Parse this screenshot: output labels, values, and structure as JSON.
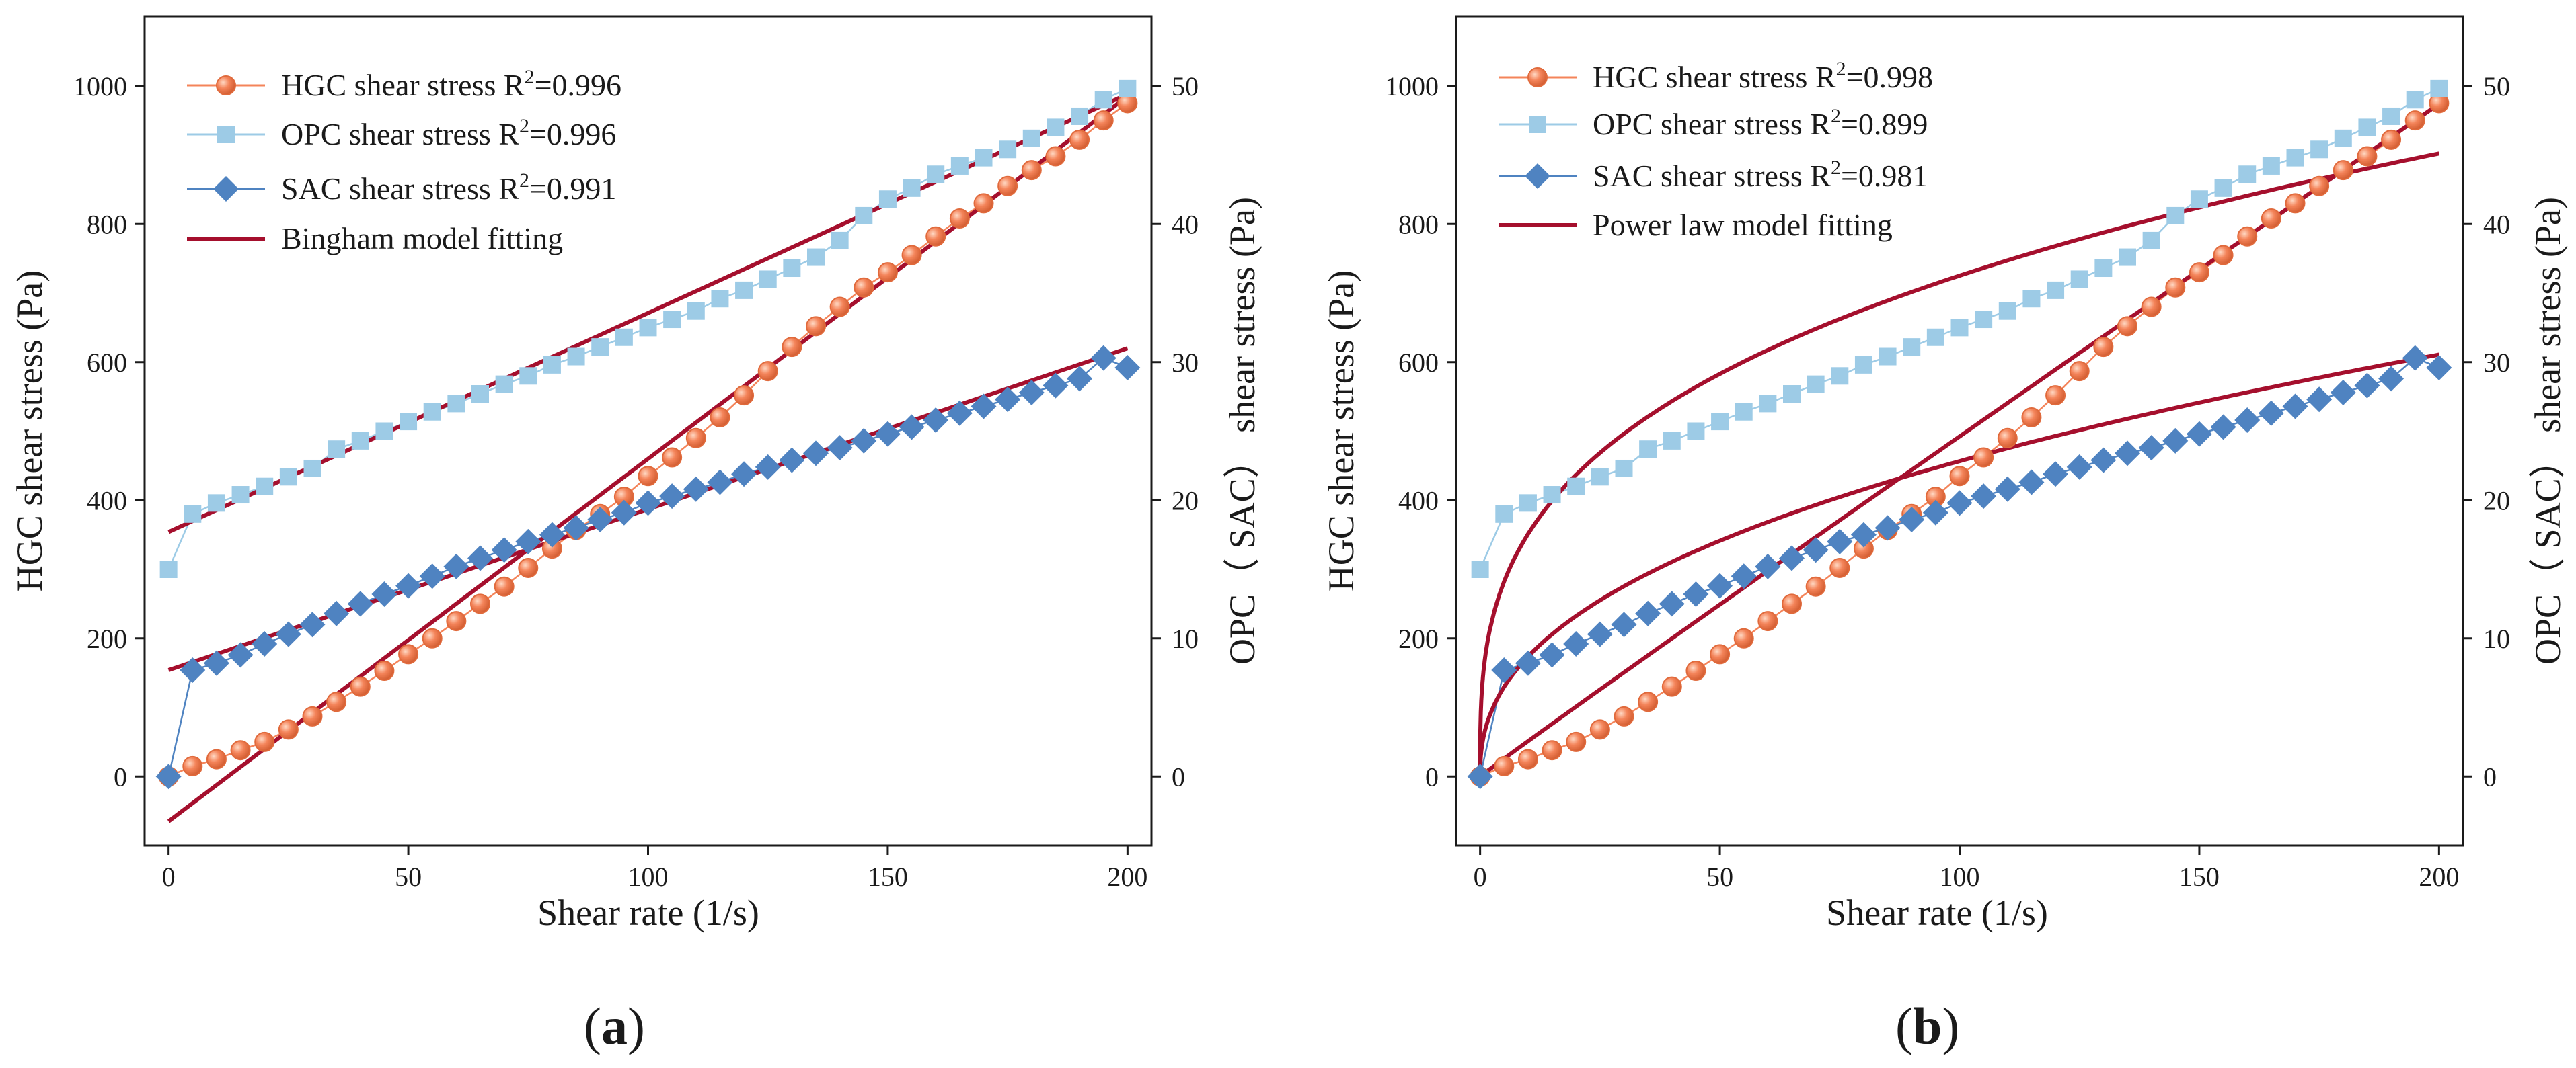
{
  "chart_data": [
    {
      "type": "scatter",
      "panel_label": "a",
      "xlabel": "Shear rate (1/s)",
      "ylabel_left": "HGC shear stress (Pa)",
      "ylabel_right": "OPC（ SAC） shear stress (Pa)",
      "xlim": [
        -5,
        205
      ],
      "ylim_left": [
        -100,
        1100
      ],
      "ylim_right": [
        -5,
        55
      ],
      "xticks": [
        0,
        50,
        100,
        150,
        200
      ],
      "yticks_left": [
        0,
        200,
        400,
        600,
        800,
        1000
      ],
      "yticks_right": [
        0,
        10,
        20,
        30,
        40,
        50
      ],
      "legend": [
        {
          "label": "HGC shear stress R",
          "sup": "2",
          "r2": "=0.996",
          "color": "#f4845a",
          "marker": "circle"
        },
        {
          "label": "OPC shear stress R",
          "sup": "2",
          "r2": "=0.996",
          "color": "#9dcbe6",
          "marker": "square"
        },
        {
          "label": "SAC shear stress R",
          "sup": "2",
          "r2": "=0.991",
          "color": "#4f83c1",
          "marker": "diamond"
        },
        {
          "label": "Bingham model fitting",
          "color": "#a50f2d",
          "marker": "line"
        }
      ],
      "series": [
        {
          "name": "HGC",
          "axis": "left",
          "x": [
            0,
            5,
            10,
            15,
            20,
            25,
            30,
            35,
            40,
            45,
            50,
            55,
            60,
            65,
            70,
            75,
            80,
            85,
            90,
            95,
            100,
            105,
            110,
            115,
            120,
            125,
            130,
            135,
            140,
            145,
            150,
            155,
            160,
            165,
            170,
            175,
            180,
            185,
            190,
            195,
            200
          ],
          "y": [
            0,
            15,
            25,
            38,
            50,
            68,
            87,
            108,
            130,
            153,
            177,
            200,
            225,
            250,
            275,
            302,
            330,
            357,
            380,
            405,
            435,
            462,
            490,
            520,
            552,
            587,
            622,
            652,
            680,
            708,
            730,
            755,
            782,
            808,
            830,
            855,
            878,
            898,
            922,
            950,
            975
          ]
        },
        {
          "name": "OPC",
          "axis": "right",
          "x": [
            0,
            5,
            10,
            15,
            20,
            25,
            30,
            35,
            40,
            45,
            50,
            55,
            60,
            65,
            70,
            75,
            80,
            85,
            90,
            95,
            100,
            105,
            110,
            115,
            120,
            125,
            130,
            135,
            140,
            145,
            150,
            155,
            160,
            165,
            170,
            175,
            180,
            185,
            190,
            195,
            200
          ],
          "y": [
            15,
            19,
            19.8,
            20.4,
            21,
            21.7,
            22.3,
            23.7,
            24.3,
            25,
            25.7,
            26.4,
            27,
            27.7,
            28.4,
            29,
            29.8,
            30.4,
            31.1,
            31.8,
            32.5,
            33.1,
            33.7,
            34.6,
            35.2,
            36,
            36.8,
            37.6,
            38.8,
            40.6,
            41.8,
            42.6,
            43.6,
            44.2,
            44.8,
            45.4,
            46.2,
            47,
            47.8,
            49,
            49.8
          ]
        },
        {
          "name": "SAC",
          "axis": "right",
          "x": [
            0,
            5,
            10,
            15,
            20,
            25,
            30,
            35,
            40,
            45,
            50,
            55,
            60,
            65,
            70,
            75,
            80,
            85,
            90,
            95,
            100,
            105,
            110,
            115,
            120,
            125,
            130,
            135,
            140,
            145,
            150,
            155,
            160,
            165,
            170,
            175,
            180,
            185,
            190,
            195,
            200
          ],
          "y": [
            0,
            7.7,
            8.2,
            8.8,
            9.6,
            10.3,
            11,
            11.8,
            12.5,
            13.2,
            13.8,
            14.5,
            15.2,
            15.8,
            16.4,
            17,
            17.5,
            18,
            18.6,
            19.1,
            19.8,
            20.3,
            20.8,
            21.3,
            21.9,
            22.4,
            22.9,
            23.4,
            23.8,
            24.3,
            24.8,
            25.3,
            25.8,
            26.3,
            26.8,
            27.3,
            27.8,
            28.3,
            28.8,
            30.3,
            29.6
          ]
        }
      ],
      "fits": [
        {
          "name": "HGC fit",
          "axis": "left",
          "model": "bingham",
          "x": [
            0,
            200
          ],
          "y": [
            -65,
            985
          ]
        },
        {
          "name": "OPC fit",
          "axis": "right",
          "model": "bingham",
          "x": [
            0,
            200
          ],
          "y": [
            17.7,
            49.4
          ]
        },
        {
          "name": "SAC fit",
          "axis": "right",
          "model": "bingham",
          "x": [
            0,
            200
          ],
          "y": [
            7.7,
            31
          ]
        }
      ]
    },
    {
      "type": "scatter",
      "panel_label": "b",
      "xlabel": "Shear rate (1/s)",
      "ylabel_left": "HGC shear stress (Pa)",
      "ylabel_right": "OPC（ SAC） shear stress (Pa)",
      "xlim": [
        -5,
        205
      ],
      "ylim_left": [
        -100,
        1100
      ],
      "ylim_right": [
        -5,
        55
      ],
      "xticks": [
        0,
        50,
        100,
        150,
        200
      ],
      "yticks_left": [
        0,
        200,
        400,
        600,
        800,
        1000
      ],
      "yticks_right": [
        0,
        10,
        20,
        30,
        40,
        50
      ],
      "legend": [
        {
          "label": "HGC shear stress R",
          "sup": "2",
          "r2": "=0.998",
          "color": "#f4845a",
          "marker": "circle"
        },
        {
          "label": "OPC shear stress R",
          "sup": "2",
          "r2": "=0.899",
          "color": "#9dcbe6",
          "marker": "square"
        },
        {
          "label": "SAC shear stress R",
          "sup": "2",
          "r2": "=0.981",
          "color": "#4f83c1",
          "marker": "diamond"
        },
        {
          "label": "Power law model fitting",
          "color": "#a50f2d",
          "marker": "line"
        }
      ],
      "series": [
        {
          "name": "HGC",
          "axis": "left",
          "x": [
            0,
            5,
            10,
            15,
            20,
            25,
            30,
            35,
            40,
            45,
            50,
            55,
            60,
            65,
            70,
            75,
            80,
            85,
            90,
            95,
            100,
            105,
            110,
            115,
            120,
            125,
            130,
            135,
            140,
            145,
            150,
            155,
            160,
            165,
            170,
            175,
            180,
            185,
            190,
            195,
            200
          ],
          "y": [
            0,
            15,
            25,
            38,
            50,
            68,
            87,
            108,
            130,
            153,
            177,
            200,
            225,
            250,
            275,
            302,
            330,
            357,
            380,
            405,
            435,
            462,
            490,
            520,
            552,
            587,
            622,
            652,
            680,
            708,
            730,
            755,
            782,
            808,
            830,
            855,
            878,
            898,
            922,
            950,
            975
          ]
        },
        {
          "name": "OPC",
          "axis": "right",
          "x": [
            0,
            5,
            10,
            15,
            20,
            25,
            30,
            35,
            40,
            45,
            50,
            55,
            60,
            65,
            70,
            75,
            80,
            85,
            90,
            95,
            100,
            105,
            110,
            115,
            120,
            125,
            130,
            135,
            140,
            145,
            150,
            155,
            160,
            165,
            170,
            175,
            180,
            185,
            190,
            195,
            200
          ],
          "y": [
            15,
            19,
            19.8,
            20.4,
            21,
            21.7,
            22.3,
            23.7,
            24.3,
            25,
            25.7,
            26.4,
            27,
            27.7,
            28.4,
            29,
            29.8,
            30.4,
            31.1,
            31.8,
            32.5,
            33.1,
            33.7,
            34.6,
            35.2,
            36,
            36.8,
            37.6,
            38.8,
            40.6,
            41.8,
            42.6,
            43.6,
            44.2,
            44.8,
            45.4,
            46.2,
            47,
            47.8,
            49,
            49.8
          ]
        },
        {
          "name": "SAC",
          "axis": "right",
          "x": [
            0,
            5,
            10,
            15,
            20,
            25,
            30,
            35,
            40,
            45,
            50,
            55,
            60,
            65,
            70,
            75,
            80,
            85,
            90,
            95,
            100,
            105,
            110,
            115,
            120,
            125,
            130,
            135,
            140,
            145,
            150,
            155,
            160,
            165,
            170,
            175,
            180,
            185,
            190,
            195,
            200
          ],
          "y": [
            0,
            7.7,
            8.2,
            8.8,
            9.6,
            10.3,
            11,
            11.8,
            12.5,
            13.2,
            13.8,
            14.5,
            15.2,
            15.8,
            16.4,
            17,
            17.5,
            18,
            18.6,
            19.1,
            19.8,
            20.3,
            20.8,
            21.3,
            21.9,
            22.4,
            22.9,
            23.4,
            23.8,
            24.3,
            24.8,
            25.3,
            25.8,
            26.3,
            26.8,
            27.3,
            27.8,
            28.3,
            28.8,
            30.3,
            29.6
          ]
        }
      ],
      "fits": [
        {
          "name": "HGC fit",
          "axis": "left",
          "model": "power_law",
          "k": 5.3,
          "n": 0.984
        },
        {
          "name": "OPC fit",
          "axis": "right",
          "model": "power_law",
          "k": 8.5,
          "n": 0.315
        },
        {
          "name": "SAC fit",
          "axis": "right",
          "model": "power_law",
          "k": 3.3,
          "n": 0.42
        }
      ]
    }
  ],
  "colors": {
    "hgc": "#f4845a",
    "opc": "#9dcbe6",
    "sac": "#4f83c1",
    "fit": "#a50f2d"
  }
}
